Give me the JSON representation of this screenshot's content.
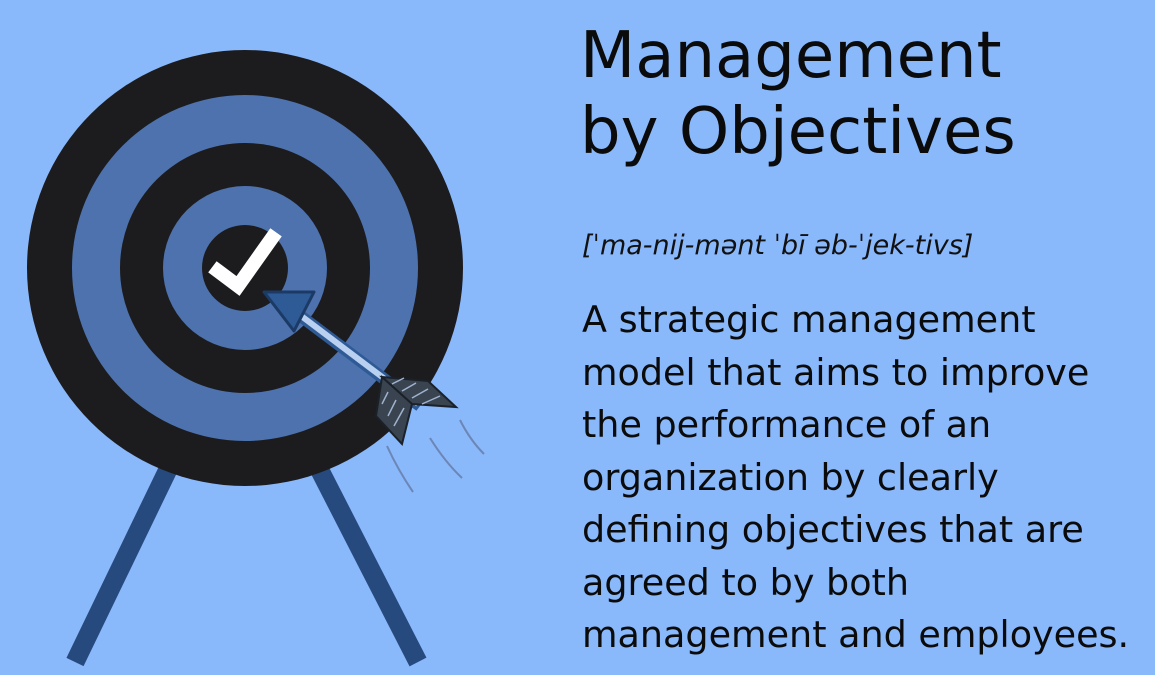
{
  "colors": {
    "background": "#89B8FB",
    "target_dark": "#1C1C1E",
    "target_blue": "#4D72AE",
    "legs": "#264A7E",
    "arrow_head": "#2E5A96",
    "arrow_shaft": "#B9D0F0",
    "check": "#FFFFFF",
    "text": "#0B0B0B"
  },
  "heading": {
    "line1": "Management",
    "line2": "by Objectives"
  },
  "pronunciation": "[ˈma-nij-mənt ˈbī əb-ˈjek-tivs]",
  "definition": {
    "lines": [
      "A strategic management",
      "model that aims to improve",
      "the performance of an",
      "organization by clearly",
      "defining objectives that are",
      "agreed to by both",
      "management and employees."
    ]
  },
  "icons": {
    "target": "archery-target-icon",
    "checkmark": "checkmark-icon",
    "arrow": "arrow-icon"
  }
}
